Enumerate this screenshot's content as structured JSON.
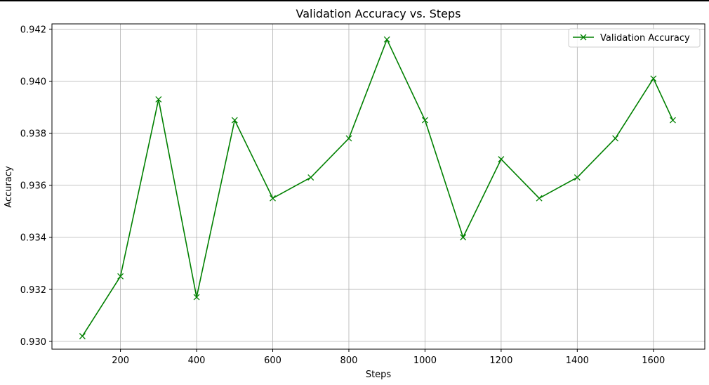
{
  "chart_data": {
    "type": "line",
    "title": "Validation Accuracy vs. Steps",
    "xlabel": "Steps",
    "ylabel": "Accuracy",
    "xlim": [
      20,
      1735
    ],
    "ylim": [
      0.9297,
      0.9422
    ],
    "xticks": [
      200,
      400,
      600,
      800,
      1000,
      1200,
      1400,
      1600
    ],
    "yticks": [
      0.93,
      0.932,
      0.934,
      0.936,
      0.938,
      0.94,
      0.942
    ],
    "grid": true,
    "legend_position": "upper right",
    "series": [
      {
        "name": "Validation Accuracy",
        "color": "#008000",
        "marker": "x",
        "x": [
          100,
          200,
          300,
          400,
          500,
          600,
          700,
          800,
          900,
          1000,
          1100,
          1200,
          1300,
          1400,
          1500,
          1600,
          1651
        ],
        "y": [
          0.9302,
          0.9325,
          0.9393,
          0.9317,
          0.9385,
          0.9355,
          0.9363,
          0.9378,
          0.9416,
          0.9385,
          0.934,
          0.937,
          0.9355,
          0.9363,
          0.9378,
          0.9401,
          0.9385
        ]
      }
    ]
  }
}
